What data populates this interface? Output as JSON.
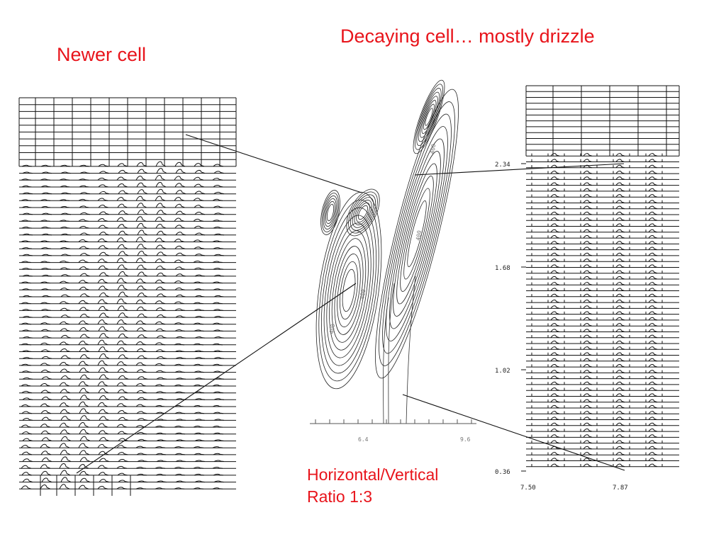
{
  "titles": {
    "newer_cell": "Newer cell",
    "decaying_cell": "Decaying cell… mostly drizzle",
    "ratio_line1": "Horizontal/Vertical",
    "ratio_line2": "Ratio   1:3"
  },
  "center_plot": {
    "x_tick_labels": [
      "6.4",
      "9.6"
    ],
    "contour_labels": [
      "400",
      "400",
      "400",
      "400"
    ]
  },
  "right_panel": {
    "y_tick_labels": [
      "2.34",
      "1.68",
      "1.02",
      "0.36"
    ],
    "x_tick_labels": [
      "7.50",
      "7.87"
    ]
  },
  "colors": {
    "annotation": "#e8141b",
    "ink": "#111111"
  }
}
